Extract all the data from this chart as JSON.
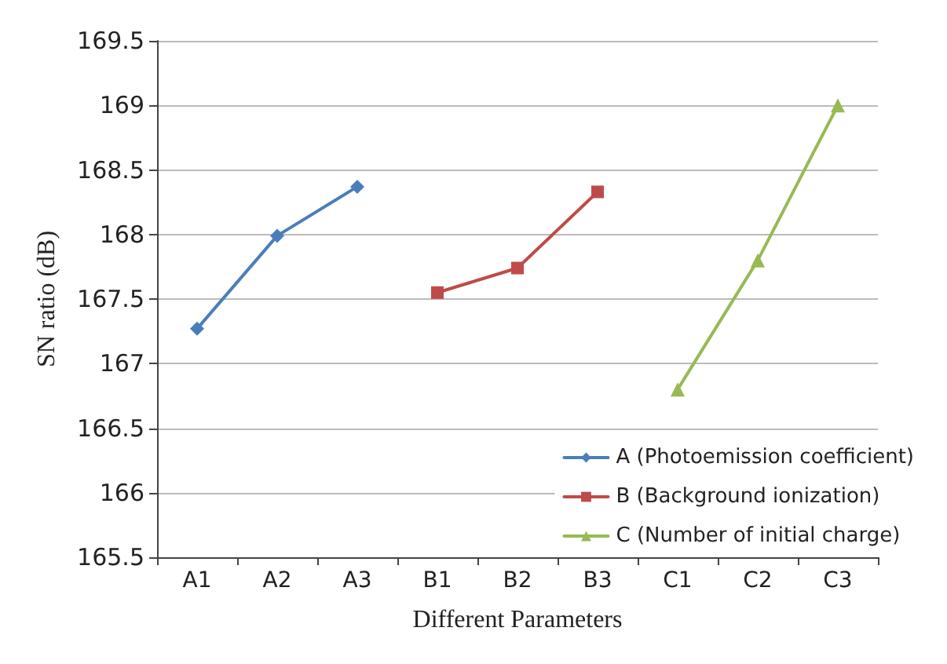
{
  "chart_data": {
    "type": "line",
    "xlabel": "Different Parameters",
    "ylabel": "SN ratio (dB)",
    "categories": [
      "A1",
      "A2",
      "A3",
      "B1",
      "B2",
      "B3",
      "C1",
      "C2",
      "C3"
    ],
    "series": [
      {
        "name": "A (Photoemission coefficient)",
        "color": "#4a7ebb",
        "marker": "diamond",
        "values": [
          167.27,
          167.99,
          168.37,
          null,
          null,
          null,
          null,
          null,
          null
        ]
      },
      {
        "name": "B (Background ionization)",
        "color": "#be4b48",
        "marker": "square",
        "values": [
          null,
          null,
          null,
          167.55,
          167.74,
          168.33,
          null,
          null,
          null
        ]
      },
      {
        "name": "C (Number of initial charge)",
        "color": "#98b954",
        "marker": "triangle",
        "values": [
          null,
          null,
          null,
          null,
          null,
          null,
          166.8,
          167.8,
          169.0
        ]
      }
    ],
    "ylim": [
      165.5,
      169.5
    ],
    "yticks": [
      165.5,
      166,
      166.5,
      167,
      167.5,
      168,
      168.5,
      169,
      169.5
    ],
    "grid": "y",
    "legend": "bottom right",
    "line_style": "solid"
  }
}
